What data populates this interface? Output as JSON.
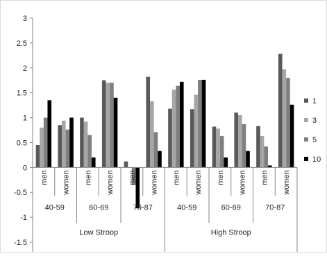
{
  "chart_data": {
    "type": "bar",
    "title": "",
    "xlabel": "",
    "ylabel": "",
    "ylim": [
      -1.5,
      3
    ],
    "y_ticks": [
      "-1.5",
      "-1",
      "-0.5",
      "0",
      "0.5",
      "1",
      "1.5",
      "2",
      "2.5",
      "3"
    ],
    "grid": false,
    "legend_position": "right",
    "stroop_groups": [
      {
        "label": "Low Stroop",
        "age_groups": [
          {
            "label": "40-59",
            "sexes": [
              {
                "label": "men",
                "values": [
                  0.45,
                  0.8,
                  1.0,
                  1.35
                ]
              },
              {
                "label": "women",
                "values": [
                  0.85,
                  0.94,
                  0.76,
                  1.0
                ]
              }
            ]
          },
          {
            "label": "60-69",
            "sexes": [
              {
                "label": "men",
                "values": [
                  1.0,
                  0.92,
                  0.65,
                  0.2
                ]
              },
              {
                "label": "women",
                "values": [
                  1.75,
                  1.7,
                  1.7,
                  1.4
                ]
              }
            ]
          },
          {
            "label": "70-87",
            "sexes": [
              {
                "label": "men",
                "values": [
                  0.12,
                  0.0,
                  -0.35,
                  -0.82
                ]
              },
              {
                "label": "women",
                "values": [
                  1.82,
                  1.33,
                  0.71,
                  0.33
                ]
              }
            ]
          }
        ]
      },
      {
        "label": "High Stroop",
        "age_groups": [
          {
            "label": "40-59",
            "sexes": [
              {
                "label": "men",
                "values": [
                  1.18,
                  1.56,
                  1.64,
                  1.72
                ]
              },
              {
                "label": "women",
                "values": [
                  1.17,
                  1.46,
                  1.76,
                  1.76
                ]
              }
            ]
          },
          {
            "label": "60-69",
            "sexes": [
              {
                "label": "men",
                "values": [
                  0.82,
                  0.78,
                  0.63,
                  0.2
                ]
              },
              {
                "label": "women",
                "values": [
                  1.1,
                  1.05,
                  0.87,
                  0.33
                ]
              }
            ]
          },
          {
            "label": "70-87",
            "sexes": [
              {
                "label": "men",
                "values": [
                  0.83,
                  0.63,
                  0.42,
                  0.04
                ]
              },
              {
                "label": "women",
                "values": [
                  2.28,
                  1.97,
                  1.8,
                  1.26
                ]
              }
            ]
          }
        ]
      }
    ],
    "series": [
      {
        "name": "1",
        "color": "#595959"
      },
      {
        "name": "3",
        "color": "#a6a6a6"
      },
      {
        "name": "5",
        "color": "#7f7f7f"
      },
      {
        "name": "10",
        "color": "#000000"
      }
    ]
  }
}
